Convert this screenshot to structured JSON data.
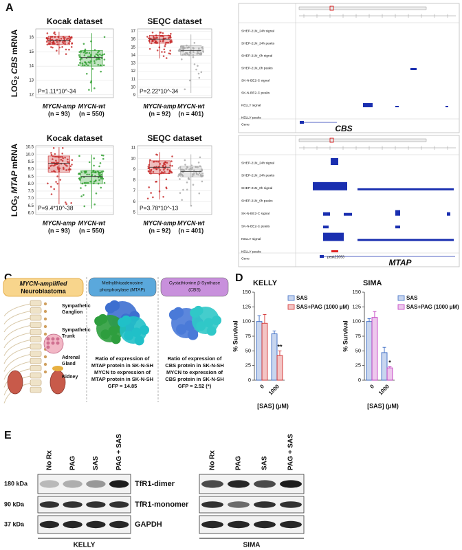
{
  "panel_a": {
    "label": "A",
    "grid": true,
    "y_labels": [
      {
        "prefix": "LOG",
        "sub": "2",
        "gene": "CBS",
        "suffix": "mRNA"
      },
      {
        "prefix": "LOG",
        "sub": "2",
        "gene": "MTAP",
        "suffix": "mRNA"
      }
    ],
    "plots": [
      {
        "title": "Kocak dataset",
        "ylim": [
          11.8,
          16.6
        ],
        "yticks": [
          12,
          13,
          14,
          15,
          16
        ],
        "p_value": "P=1.11*10^-34",
        "groups": [
          {
            "name": "MYCN-amp",
            "n": "(n = 93)",
            "color": "#c62828",
            "box": [
              15.5,
              15.8,
              16.1
            ],
            "whiskers": [
              14.8,
              16.4
            ]
          },
          {
            "name": "MYCN-wt",
            "n": "(n = 550)",
            "color": "#2e9e2e",
            "box": [
              14.0,
              14.6,
              15.1
            ],
            "whiskers": [
              12.2,
              16.3
            ]
          }
        ]
      },
      {
        "title": "SEQC dataset",
        "ylim": [
          8.7,
          17.3
        ],
        "yticks": [
          9,
          10,
          11,
          12,
          13,
          14,
          15,
          16,
          17
        ],
        "p_value": "P=2.22*10^-34",
        "groups": [
          {
            "name": "MYCN-amp",
            "n": "(n = 92)",
            "color": "#c62828",
            "box": [
              15.5,
              16.0,
              16.5
            ],
            "whiskers": [
              13.6,
              17.0
            ]
          },
          {
            "name": "MYCN-wt",
            "n": "(n = 401)",
            "color": "#a8a8a8",
            "box": [
              14.0,
              14.6,
              15.2
            ],
            "whiskers": [
              9.3,
              16.6
            ]
          }
        ]
      },
      {
        "title": "Kocak dataset",
        "ylim": [
          5.9,
          10.6
        ],
        "yticks": [
          {
            "value": 6,
            "label": "6.0"
          },
          6.5,
          {
            "value": 7,
            "label": "7.0"
          },
          7.5,
          {
            "value": 8,
            "label": "8.0"
          },
          8.5,
          {
            "value": 9,
            "label": "9.0"
          },
          9.5,
          {
            "value": 10,
            "label": "10.0"
          },
          10.5
        ],
        "p_value": "P=9.4*10^-38",
        "groups": [
          {
            "name": "MYCN-amp",
            "n": "(n = 93)",
            "color": "#c62828",
            "box": [
              8.8,
              9.4,
              9.9
            ],
            "whiskers": [
              6.6,
              10.5
            ]
          },
          {
            "name": "MYCN-wt",
            "n": "(n = 550)",
            "color": "#2e9e2e",
            "box": [
              8.0,
              8.5,
              8.9
            ],
            "whiskers": [
              6.3,
              10.0
            ]
          }
        ]
      },
      {
        "title": "SEQC dataset",
        "ylim": [
          4.8,
          11.2
        ],
        "yticks": [
          5,
          6,
          7,
          8,
          9,
          10,
          11
        ],
        "p_value": "P=3.78*10^-13",
        "groups": [
          {
            "name": "MYCN-amp",
            "n": "(n = 92)",
            "color": "#c62828",
            "box": [
              8.6,
              9.2,
              9.8
            ],
            "whiskers": [
              6.2,
              10.6
            ]
          },
          {
            "name": "MYCN-wt",
            "n": "(n = 401)",
            "color": "#a8a8a8",
            "box": [
              8.3,
              8.8,
              9.3
            ],
            "whiskers": [
              5.6,
              10.4
            ]
          }
        ]
      }
    ]
  },
  "panel_b": {
    "label": "B",
    "views": [
      {
        "tracks": [
          "SHEP-21N_24h signal",
          "SHEP-21N_24h peaks",
          "SHEP-21N_0h signal",
          "SHEP-21N_0h peaks",
          "SK-N-BE2-C signal",
          "SK-N-BE2-C peaks",
          "KELLY signal",
          "KELLY peaks",
          "Gene"
        ],
        "gene": "CBS"
      },
      {
        "tracks": [
          "SHEP-21N_24h signal",
          "SHEP-21N_24h peaks",
          "SHEP-21N_0h signal",
          "SHEP-21N_0h peaks",
          "SK-N-BE2-C signal",
          "SK-N-BE2-C peaks",
          "KELLY signal",
          "KELLY peaks",
          "Gene"
        ],
        "gene": "MTAP",
        "peak_label": "peak22093"
      }
    ]
  },
  "panel_c": {
    "label": "C",
    "title": [
      "MYCN-amplified",
      "Neuroblastoma"
    ],
    "anatomy": [
      [
        "Sympathetic",
        "Ganglion"
      ],
      [
        "Sympathetic",
        "Trunk"
      ],
      [
        "Adrenal",
        "Gland"
      ],
      [
        "Kidney"
      ]
    ],
    "proteins": [
      {
        "header": [
          "Methylthioadenosine",
          "phosphorylase (MTAP)"
        ],
        "ratio": [
          "Ratio of expression of",
          "MTAP protein in SK-N-SH",
          "MYCN to expression of",
          "MTAP protein in SK-N-SH",
          "GFP = 14.85"
        ]
      },
      {
        "header": [
          "Cystathionine β-Synthase",
          "(CBS)"
        ],
        "ratio": [
          "Ratio of expression of",
          "CBS protein in SK-N-SH",
          "MYCN to expression of",
          "CBS protein in SK-N-SH",
          "GFP = 2.52 (*)"
        ]
      }
    ]
  },
  "panel_d": {
    "label": "D",
    "charts": [
      {
        "type": "bar",
        "title": "KELLY",
        "categories": [
          "0",
          "1000"
        ],
        "ylim": [
          0,
          150
        ],
        "yticks": [
          0,
          25,
          50,
          75,
          100,
          125,
          150
        ],
        "y_label": "% Survival",
        "x_label": "[SAS] (µM)",
        "series": [
          {
            "name": "SAS",
            "color": "#3b6bc4",
            "values": [
              100,
              79
            ],
            "errors": [
              10,
              5
            ],
            "significance": [
              null,
              null
            ]
          },
          {
            "name": "SAS+PAG (1000 µM)",
            "color": "#d32f2f",
            "values": [
              97,
              42
            ],
            "errors": [
              15,
              8
            ],
            "significance": [
              null,
              "**"
            ]
          }
        ]
      },
      {
        "type": "bar",
        "title": "SIMA",
        "categories": [
          "0",
          "1000"
        ],
        "ylim": [
          0,
          150
        ],
        "yticks": [
          0,
          25,
          50,
          75,
          100,
          125,
          150
        ],
        "y_label": "% Survival",
        "x_label": "[SAS] (µM)",
        "series": [
          {
            "name": "SAS",
            "color": "#3b6bc4",
            "values": [
              100,
              47
            ],
            "errors": [
              5,
              9
            ],
            "significance": [
              null,
              null
            ]
          },
          {
            "name": "SAS+PAG (1000 µM)",
            "color": "#c03ac0",
            "values": [
              107,
              21
            ],
            "errors": [
              10,
              2
            ],
            "significance": [
              null,
              "*"
            ]
          }
        ]
      }
    ]
  },
  "panel_e": {
    "label": "E",
    "lanes": [
      "No Rx",
      "PAG",
      "SAS",
      "PAG + SAS"
    ],
    "markers": [
      "180 kDa",
      "90 kDa",
      "37 kDa"
    ],
    "proteins": [
      "TfR1-dimer",
      "TfR1-monomer",
      "GAPDH"
    ],
    "cell_lines": [
      "KELLY",
      "SIMA"
    ]
  }
}
